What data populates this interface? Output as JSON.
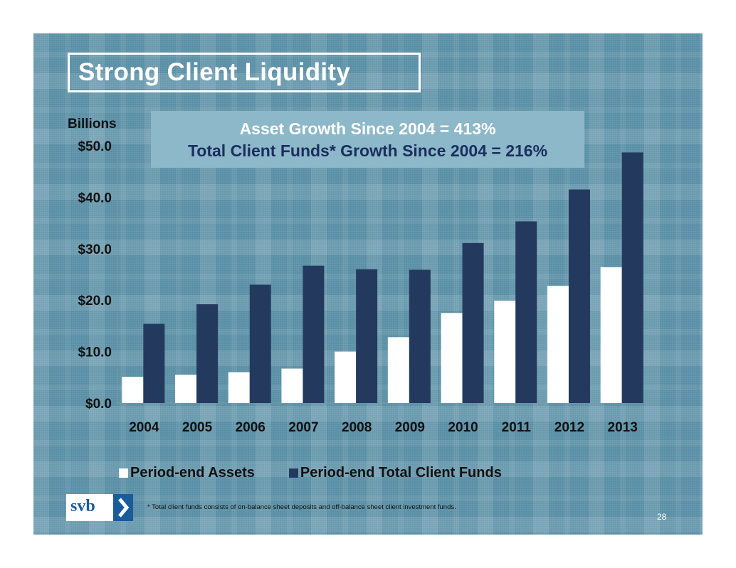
{
  "slide": {
    "title": "Strong Client Liquidity",
    "callout_line1": "Asset Growth Since 2004 = 413%",
    "callout_line2": "Total Client Funds* Growth Since 2004 = 216%",
    "unit_label": "Billions",
    "footnote": "* Total client funds consists of on-balance sheet deposits and off-balance sheet client investment funds.",
    "page_number": "28",
    "logo_text": "svb",
    "logo_icon": "chevron-right-icon"
  },
  "colors": {
    "background": "#5a8fa5",
    "assets": "#ffffff",
    "client_funds": "#233a5e",
    "callout_bg": "#8cb8c9",
    "callout_line2_text": "#1c2d5f",
    "logo_blue": "#1a5b9b"
  },
  "chart_data": {
    "type": "bar",
    "categories": [
      "2004",
      "2005",
      "2006",
      "2007",
      "2008",
      "2009",
      "2010",
      "2011",
      "2012",
      "2013"
    ],
    "series": [
      {
        "name": "Period-end Assets",
        "values": [
          5.1,
          5.5,
          6.0,
          6.7,
          10.0,
          12.8,
          17.5,
          19.9,
          22.8,
          26.4
        ]
      },
      {
        "name": "Period-end Total Client Funds",
        "values": [
          15.4,
          19.2,
          23.0,
          26.7,
          26.0,
          25.9,
          31.1,
          35.3,
          41.5,
          48.7
        ]
      }
    ],
    "ylabel": "Billions",
    "ylim": [
      0,
      50
    ],
    "yticks": [
      "$0.0",
      "$10.0",
      "$20.0",
      "$30.0",
      "$40.0",
      "$50.0"
    ],
    "legend_position": "bottom",
    "grid": false
  }
}
